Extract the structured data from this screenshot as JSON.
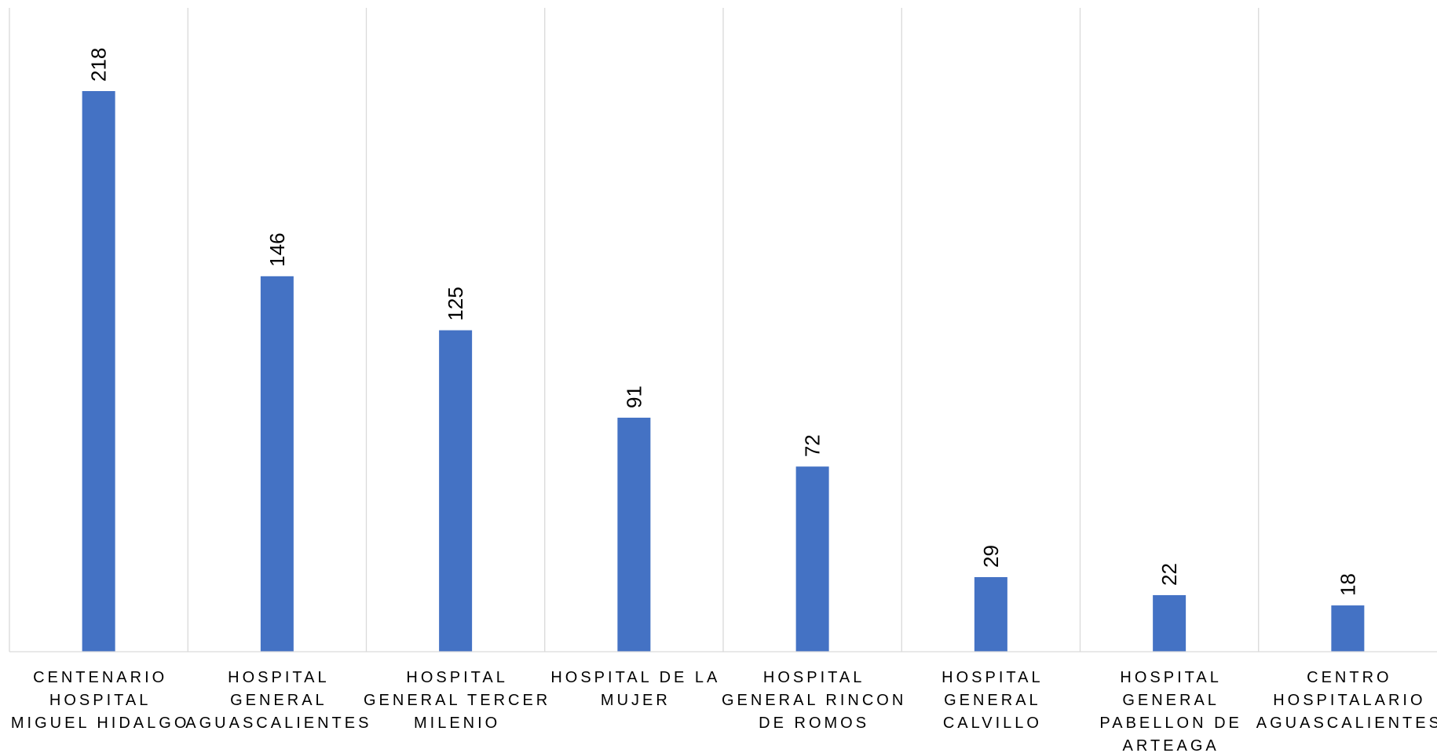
{
  "chart_data": {
    "type": "bar",
    "title": "",
    "xlabel": "",
    "ylabel": "",
    "categories": [
      [
        "CENTENARIO",
        "HOSPITAL",
        "MIGUEL HIDALGO"
      ],
      [
        "HOSPITAL",
        "GENERAL",
        "AGUASCALIENTES"
      ],
      [
        "HOSPITAL",
        "GENERAL TERCER",
        "MILENIO"
      ],
      [
        "HOSPITAL DE LA",
        "MUJER"
      ],
      [
        "HOSPITAL",
        "GENERAL RINCON",
        "DE ROMOS"
      ],
      [
        "HOSPITAL",
        "GENERAL",
        "CALVILLO"
      ],
      [
        "HOSPITAL",
        "GENERAL",
        "PABELLON DE",
        "ARTEAGA"
      ],
      [
        "CENTRO",
        "HOSPITALARIO",
        "AGUASCALIENTES"
      ]
    ],
    "values": [
      218,
      146,
      125,
      91,
      72,
      29,
      22,
      18
    ],
    "data_labels": [
      "218",
      "146",
      "125",
      "91",
      "72",
      "29",
      "22",
      "18"
    ],
    "ylim": [
      0,
      250
    ],
    "grid": "vertical category separators",
    "legend": "none",
    "colors": {
      "bar": "#4472c4",
      "grid": "#d9d9d9",
      "text": "#000000"
    }
  }
}
